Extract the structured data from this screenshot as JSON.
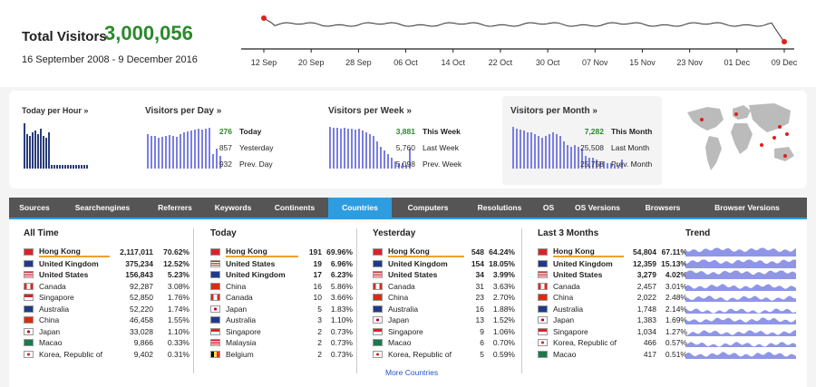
{
  "summary": {
    "label": "Total Visitors",
    "value": "3,000,056",
    "date_range": "16 September 2008 - 9 December 2016",
    "trend_dates": [
      "12 Sep",
      "20 Sep",
      "28 Sep",
      "06 Oct",
      "14 Oct",
      "22 Oct",
      "30 Oct",
      "07 Nov",
      "15 Nov",
      "23 Nov",
      "01 Dec",
      "09 Dec"
    ],
    "accent_color": "#2a8a2a"
  },
  "panels": {
    "hour": {
      "title": "Today per Hour »"
    },
    "day": {
      "title": "Visitors per Day »",
      "stats": [
        {
          "num": "276",
          "label": "Today",
          "highlight": true
        },
        {
          "num": "857",
          "label": "Yesterday"
        },
        {
          "num": "932",
          "label": "Prev. Day"
        }
      ]
    },
    "week": {
      "title": "Visitors per Week »",
      "stats": [
        {
          "num": "3,881",
          "label": "This Week",
          "highlight": true
        },
        {
          "num": "5,760",
          "label": "Last Week"
        },
        {
          "num": "5,098",
          "label": "Prev. Week"
        }
      ]
    },
    "month": {
      "title": "Visitors per Month »",
      "stats": [
        {
          "num": "7,282",
          "label": "This Month",
          "highlight": true
        },
        {
          "num": "25,508",
          "label": "Last Month"
        },
        {
          "num": "25,758",
          "label": "Prev. Month"
        }
      ]
    }
  },
  "tabs": [
    "Sources",
    "Searchengines",
    "Referrers",
    "Keywords",
    "Continents",
    "Countries",
    "Computers",
    "Resolutions",
    "OS",
    "OS Versions",
    "Browsers",
    "Browser Versions"
  ],
  "active_tab": "Countries",
  "columns": {
    "all_time": {
      "title": "All Time",
      "rows": [
        {
          "name": "Hong Kong",
          "num": "2,117,011",
          "pct": "70.62%",
          "flag": "hk",
          "bold": true,
          "hl": true
        },
        {
          "name": "United Kingdom",
          "num": "375,234",
          "pct": "12.52%",
          "flag": "uk",
          "bold": true
        },
        {
          "name": "United States",
          "num": "156,843",
          "pct": "5.23%",
          "flag": "us",
          "bold": true
        },
        {
          "name": "Canada",
          "num": "92,287",
          "pct": "3.08%",
          "flag": "ca"
        },
        {
          "name": "Singapore",
          "num": "52,850",
          "pct": "1.76%",
          "flag": "sg"
        },
        {
          "name": "Australia",
          "num": "52,220",
          "pct": "1.74%",
          "flag": "au"
        },
        {
          "name": "China",
          "num": "46,458",
          "pct": "1.55%",
          "flag": "cn"
        },
        {
          "name": "Japan",
          "num": "33,028",
          "pct": "1.10%",
          "flag": "jp"
        },
        {
          "name": "Macao",
          "num": "9,866",
          "pct": "0.33%",
          "flag": "mo"
        },
        {
          "name": "Korea, Republic of",
          "num": "9,402",
          "pct": "0.31%",
          "flag": "kr"
        }
      ]
    },
    "today": {
      "title": "Today",
      "rows": [
        {
          "name": "Hong Kong",
          "num": "191",
          "pct": "69.96%",
          "flag": "hk",
          "bold": true,
          "hl": true
        },
        {
          "name": "United States",
          "num": "19",
          "pct": "6.96%",
          "flag": "us",
          "bold": true
        },
        {
          "name": "United Kingdom",
          "num": "17",
          "pct": "6.23%",
          "flag": "uk",
          "bold": true
        },
        {
          "name": "China",
          "num": "16",
          "pct": "5.86%",
          "flag": "cn"
        },
        {
          "name": "Canada",
          "num": "10",
          "pct": "3.66%",
          "flag": "ca"
        },
        {
          "name": "Japan",
          "num": "5",
          "pct": "1.83%",
          "flag": "jp"
        },
        {
          "name": "Australia",
          "num": "3",
          "pct": "1.10%",
          "flag": "au"
        },
        {
          "name": "Singapore",
          "num": "2",
          "pct": "0.73%",
          "flag": "sg"
        },
        {
          "name": "Malaysia",
          "num": "2",
          "pct": "0.73%",
          "flag": "my"
        },
        {
          "name": "Belgium",
          "num": "2",
          "pct": "0.73%",
          "flag": "be"
        }
      ]
    },
    "yesterday": {
      "title": "Yesterday",
      "rows": [
        {
          "name": "Hong Kong",
          "num": "548",
          "pct": "64.24%",
          "flag": "hk",
          "bold": true,
          "hl": true
        },
        {
          "name": "United Kingdom",
          "num": "154",
          "pct": "18.05%",
          "flag": "uk",
          "bold": true
        },
        {
          "name": "United States",
          "num": "34",
          "pct": "3.99%",
          "flag": "us",
          "bold": true
        },
        {
          "name": "Canada",
          "num": "31",
          "pct": "3.63%",
          "flag": "ca"
        },
        {
          "name": "China",
          "num": "23",
          "pct": "2.70%",
          "flag": "cn"
        },
        {
          "name": "Australia",
          "num": "16",
          "pct": "1.88%",
          "flag": "au"
        },
        {
          "name": "Japan",
          "num": "13",
          "pct": "1.52%",
          "flag": "jp"
        },
        {
          "name": "Singapore",
          "num": "9",
          "pct": "1.06%",
          "flag": "sg"
        },
        {
          "name": "Macao",
          "num": "6",
          "pct": "0.70%",
          "flag": "mo"
        },
        {
          "name": "Korea, Republic of",
          "num": "5",
          "pct": "0.59%",
          "flag": "kr"
        }
      ]
    },
    "last3": {
      "title": "Last 3 Months",
      "rows": [
        {
          "name": "Hong Kong",
          "num": "54,804",
          "pct": "67.11%",
          "flag": "hk",
          "bold": true,
          "hl": true
        },
        {
          "name": "United Kingdom",
          "num": "12,359",
          "pct": "15.13%",
          "flag": "uk",
          "bold": true
        },
        {
          "name": "United States",
          "num": "3,279",
          "pct": "4.02%",
          "flag": "us",
          "bold": true
        },
        {
          "name": "Canada",
          "num": "2,457",
          "pct": "3.01%",
          "flag": "ca"
        },
        {
          "name": "China",
          "num": "2,022",
          "pct": "2.48%",
          "flag": "cn"
        },
        {
          "name": "Australia",
          "num": "1,748",
          "pct": "2.14%",
          "flag": "au"
        },
        {
          "name": "Japan",
          "num": "1,383",
          "pct": "1.69%",
          "flag": "jp"
        },
        {
          "name": "Singapore",
          "num": "1,034",
          "pct": "1.27%",
          "flag": "sg"
        },
        {
          "name": "Korea, Republic of",
          "num": "466",
          "pct": "0.57%",
          "flag": "kr"
        },
        {
          "name": "Macao",
          "num": "417",
          "pct": "0.51%",
          "flag": "mo"
        }
      ]
    },
    "trend": {
      "title": "Trend"
    }
  },
  "more_link": "More Countries"
}
